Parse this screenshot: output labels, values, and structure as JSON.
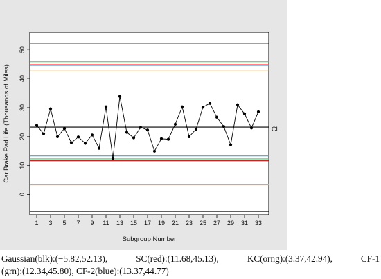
{
  "chart_data": {
    "type": "line",
    "xlabel": "Subgroup Number",
    "ylabel": "Car Brake Pad Life (Thousands of Miles)",
    "x": [
      1,
      2,
      3,
      4,
      5,
      6,
      7,
      8,
      9,
      10,
      11,
      12,
      13,
      14,
      15,
      16,
      17,
      18,
      19,
      20,
      21,
      22,
      23,
      24,
      25,
      26,
      27,
      28,
      29,
      30,
      31,
      32,
      33
    ],
    "values": [
      23.9,
      21.0,
      29.6,
      20.0,
      22.8,
      17.9,
      19.9,
      17.7,
      20.6,
      16.0,
      30.3,
      12.4,
      33.9,
      21.5,
      19.6,
      23.2,
      22.3,
      15.0,
      19.3,
      19.1,
      24.3,
      30.3,
      20.0,
      22.6,
      30.2,
      31.5,
      26.7,
      23.5,
      17.2,
      31.0,
      27.9,
      23.0,
      28.6
    ],
    "xticks": [
      "1",
      "3",
      "5",
      "7",
      "9",
      "11",
      "13",
      "15",
      "17",
      "19",
      "21",
      "23",
      "25",
      "27",
      "29",
      "31",
      "33"
    ],
    "yticks": [
      "0",
      "10",
      "20",
      "30",
      "40",
      "50"
    ],
    "ylim": [
      -7,
      56
    ],
    "xlim": [
      0,
      34.5
    ],
    "center_line": {
      "label": "CL",
      "value": 23.3
    },
    "limit_lines": [
      {
        "method": "Gaussian",
        "color": "#000000",
        "lower": -5.82,
        "upper": 52.13
      },
      {
        "method": "SC",
        "color": "#cc0000",
        "lower": 11.68,
        "upper": 45.13
      },
      {
        "method": "KC",
        "color": "#f5a142",
        "lower": 3.37,
        "upper": 42.94
      },
      {
        "method": "CF-1",
        "color": "#33cc66",
        "lower": 12.34,
        "upper": 45.8
      },
      {
        "method": "CF-2",
        "color": "#33aadd",
        "lower": 13.37,
        "upper": 44.77
      }
    ],
    "grid": false,
    "legend": "none"
  },
  "caption": {
    "gaussian": "Gaussian(blk):(−5.82,52.13),",
    "sc": "SC(red):(11.68,45.13),",
    "kc": "KC(orng):(3.37,42.94),",
    "cf1a": "CF-1",
    "cf1b": "(grn):(12.34,45.80), CF-2(blue):(13.37,44.77)"
  }
}
